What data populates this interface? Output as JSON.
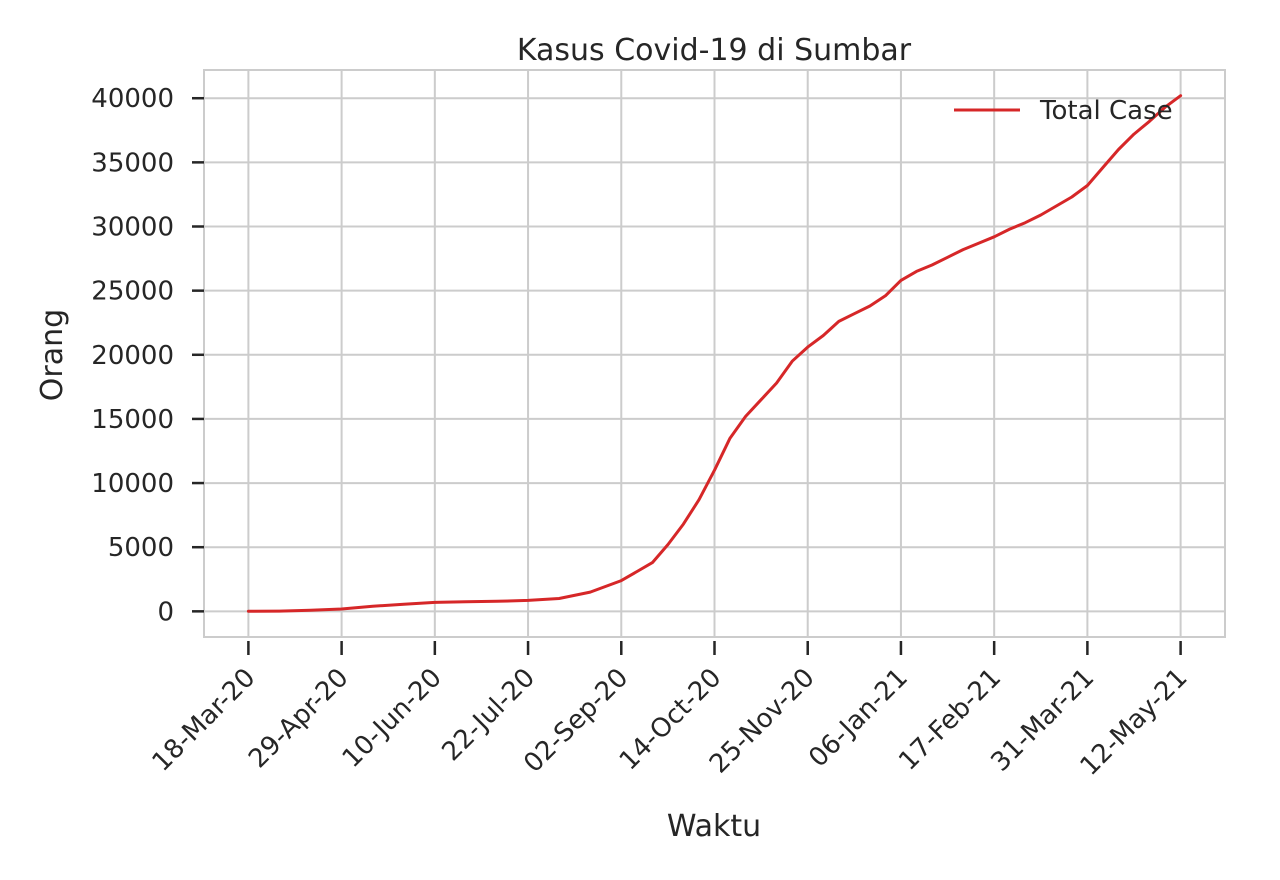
{
  "chart_data": {
    "type": "line",
    "title": "Kasus Covid-19 di Sumbar",
    "xlabel": "Waktu",
    "ylabel": "Orang",
    "x_ticks": [
      "18-Mar-20",
      "29-Apr-20",
      "10-Jun-20",
      "22-Jul-20",
      "02-Sep-20",
      "14-Oct-20",
      "25-Nov-20",
      "06-Jan-21",
      "17-Feb-21",
      "31-Mar-21",
      "12-May-21"
    ],
    "y_ticks": [
      0,
      5000,
      10000,
      15000,
      20000,
      25000,
      30000,
      35000,
      40000
    ],
    "xlim": [
      "2020-02-27",
      "2021-06-01"
    ],
    "ylim": [
      -2000,
      42200
    ],
    "grid": true,
    "legend_position": "top-right",
    "colors": {
      "line": "#d62728",
      "grid": "#cccccc",
      "spine": "#cccccc",
      "tick": "#262626"
    },
    "series": [
      {
        "name": "Total Case",
        "x": [
          "2020-03-18",
          "2020-04-01",
          "2020-04-15",
          "2020-04-29",
          "2020-05-13",
          "2020-05-27",
          "2020-06-10",
          "2020-06-24",
          "2020-07-08",
          "2020-07-22",
          "2020-08-05",
          "2020-08-19",
          "2020-09-02",
          "2020-09-16",
          "2020-09-23",
          "2020-09-30",
          "2020-10-07",
          "2020-10-14",
          "2020-10-21",
          "2020-10-28",
          "2020-11-04",
          "2020-11-11",
          "2020-11-18",
          "2020-11-25",
          "2020-12-02",
          "2020-12-09",
          "2020-12-16",
          "2020-12-23",
          "2020-12-30",
          "2021-01-06",
          "2021-01-13",
          "2021-01-20",
          "2021-01-27",
          "2021-02-03",
          "2021-02-10",
          "2021-02-17",
          "2021-02-24",
          "2021-03-03",
          "2021-03-10",
          "2021-03-17",
          "2021-03-24",
          "2021-03-31",
          "2021-04-07",
          "2021-04-14",
          "2021-04-21",
          "2021-04-28",
          "2021-05-05",
          "2021-05-12"
        ],
        "y": [
          0,
          20,
          80,
          180,
          400,
          550,
          700,
          750,
          780,
          850,
          1000,
          1500,
          2400,
          3800,
          5200,
          6800,
          8700,
          11000,
          13500,
          15200,
          16500,
          17800,
          19500,
          20600,
          21500,
          22600,
          23200,
          23800,
          24600,
          25800,
          26500,
          27000,
          27600,
          28200,
          28700,
          29200,
          29800,
          30300,
          30900,
          31600,
          32300,
          33200,
          34600,
          36000,
          37200,
          38200,
          39300,
          40200
        ]
      }
    ]
  }
}
